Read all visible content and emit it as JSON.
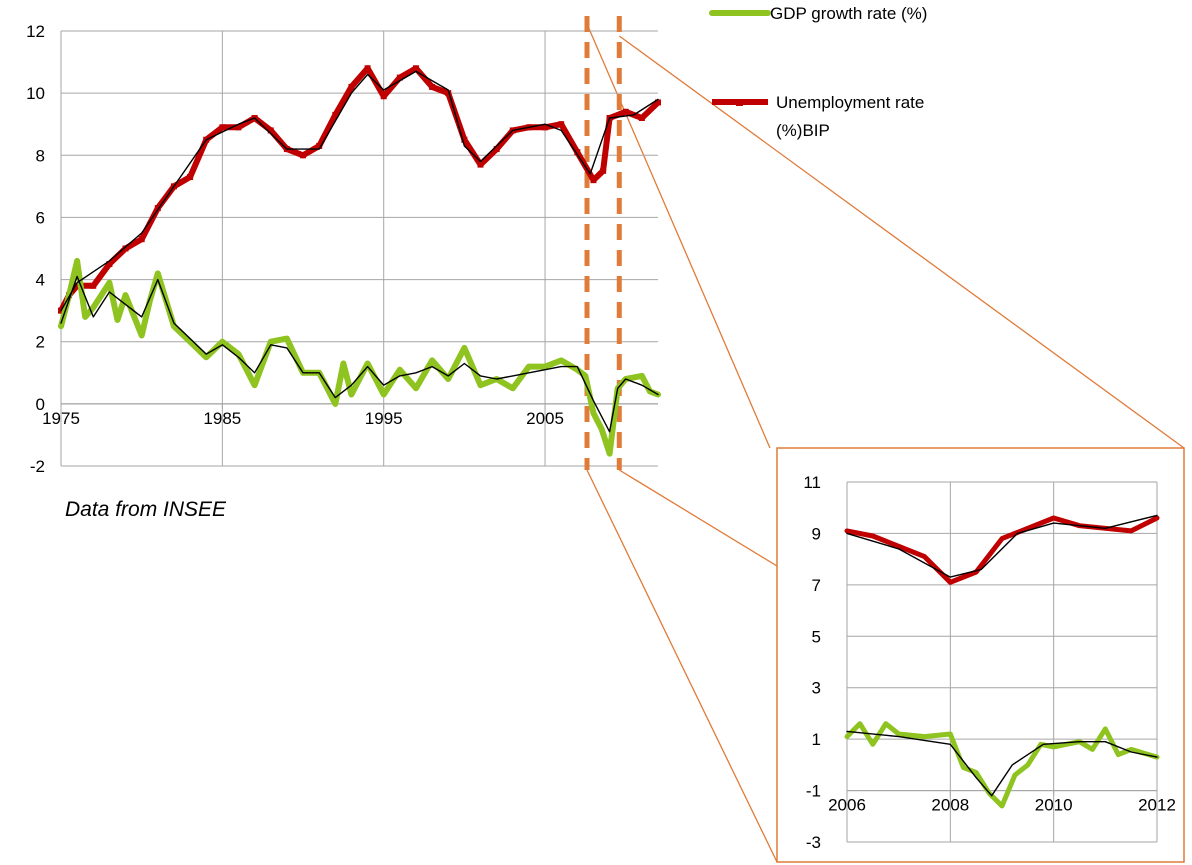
{
  "source_note": "Data from INSEE",
  "colors": {
    "gdp": "#8fc31f",
    "unemployment": "#c00000",
    "trend": "#000000",
    "grid": "#a6a6a6",
    "callout": "#e07b39",
    "callout_fill": "#fdf2e9"
  },
  "legend": [
    {
      "label": "GDP growth rate (%)",
      "color": "#8fc31f"
    },
    {
      "label": "Unemployment rate (%)BIP",
      "color": "#c00000"
    }
  ],
  "chart_data": [
    {
      "type": "line",
      "title": "",
      "xlabel": "",
      "ylabel": "",
      "xlim": [
        1975,
        2012
      ],
      "ylim": [
        -2,
        12
      ],
      "x_ticks": [
        "1975",
        "1985",
        "1995",
        "2005"
      ],
      "x_tick_values": [
        1975,
        1985,
        1995,
        2005
      ],
      "y_ticks": [
        "-2",
        "0",
        "2",
        "4",
        "6",
        "8",
        "10",
        "12"
      ],
      "y_tick_values": [
        -2,
        0,
        2,
        4,
        6,
        8,
        10,
        12
      ],
      "grid": "vertical and horizontal",
      "highlight_range": [
        2007.6,
        2009.6
      ],
      "series": [
        {
          "name": "Unemployment rate (%)BIP",
          "points": [
            [
              1975,
              3.0
            ],
            [
              1975.5,
              3.5
            ],
            [
              1976,
              3.8
            ],
            [
              1977,
              3.8
            ],
            [
              1978,
              4.5
            ],
            [
              1979,
              5.0
            ],
            [
              1980,
              5.3
            ],
            [
              1981,
              6.3
            ],
            [
              1982,
              7.0
            ],
            [
              1983,
              7.3
            ],
            [
              1984,
              8.5
            ],
            [
              1985,
              8.9
            ],
            [
              1986,
              8.9
            ],
            [
              1987,
              9.2
            ],
            [
              1988,
              8.8
            ],
            [
              1989,
              8.2
            ],
            [
              1990,
              8.0
            ],
            [
              1991,
              8.3
            ],
            [
              1992,
              9.3
            ],
            [
              1993,
              10.2
            ],
            [
              1994,
              10.8
            ],
            [
              1995,
              9.9
            ],
            [
              1996,
              10.5
            ],
            [
              1997,
              10.8
            ],
            [
              1998,
              10.2
            ],
            [
              1999,
              10.0
            ],
            [
              2000,
              8.5
            ],
            [
              2001,
              7.7
            ],
            [
              2002,
              8.2
            ],
            [
              2003,
              8.8
            ],
            [
              2004,
              8.9
            ],
            [
              2005,
              8.9
            ],
            [
              2006,
              9.0
            ],
            [
              2007,
              8.1
            ],
            [
              2008,
              7.2
            ],
            [
              2008.6,
              7.5
            ],
            [
              2009,
              9.2
            ],
            [
              2010,
              9.4
            ],
            [
              2011,
              9.2
            ],
            [
              2012,
              9.7
            ]
          ]
        },
        {
          "name": "GDP growth rate (%)",
          "points": [
            [
              1975,
              2.5
            ],
            [
              1975.5,
              3.5
            ],
            [
              1976,
              4.6
            ],
            [
              1976.5,
              2.8
            ],
            [
              1977,
              3.1
            ],
            [
              1978,
              3.9
            ],
            [
              1978.5,
              2.7
            ],
            [
              1979,
              3.5
            ],
            [
              1980,
              2.2
            ],
            [
              1980.5,
              3.3
            ],
            [
              1981,
              4.2
            ],
            [
              1982,
              2.5
            ],
            [
              1983,
              2.0
            ],
            [
              1984,
              1.5
            ],
            [
              1985,
              2.0
            ],
            [
              1986,
              1.6
            ],
            [
              1987,
              0.6
            ],
            [
              1988,
              2.0
            ],
            [
              1989,
              2.1
            ],
            [
              1990,
              1.0
            ],
            [
              1991,
              1.0
            ],
            [
              1992,
              0.0
            ],
            [
              1992.5,
              1.3
            ],
            [
              1993,
              0.3
            ],
            [
              1994,
              1.3
            ],
            [
              1995,
              0.3
            ],
            [
              1996,
              1.1
            ],
            [
              1997,
              0.5
            ],
            [
              1998,
              1.4
            ],
            [
              1999,
              0.8
            ],
            [
              2000,
              1.8
            ],
            [
              2001,
              0.6
            ],
            [
              2002,
              0.8
            ],
            [
              2003,
              0.5
            ],
            [
              2004,
              1.2
            ],
            [
              2005,
              1.2
            ],
            [
              2006,
              1.4
            ],
            [
              2007,
              1.1
            ],
            [
              2007.5,
              0.9
            ],
            [
              2008,
              -0.3
            ],
            [
              2008.5,
              -0.8
            ],
            [
              2009,
              -1.6
            ],
            [
              2009.5,
              0.5
            ],
            [
              2010,
              0.8
            ],
            [
              2011,
              0.9
            ],
            [
              2011.5,
              0.4
            ],
            [
              2012,
              0.3
            ]
          ]
        },
        {
          "name": "",
          "points": [
            [
              1975,
              3.0
            ],
            [
              1976,
              3.9
            ],
            [
              1978,
              4.6
            ],
            [
              1980,
              5.5
            ],
            [
              1982,
              7.0
            ],
            [
              1984,
              8.5
            ],
            [
              1986,
              9.0
            ],
            [
              1987,
              9.2
            ],
            [
              1989,
              8.2
            ],
            [
              1991,
              8.2
            ],
            [
              1993,
              10.0
            ],
            [
              1994,
              10.6
            ],
            [
              1995,
              10.1
            ],
            [
              1997,
              10.7
            ],
            [
              1999,
              10.1
            ],
            [
              2000,
              8.3
            ],
            [
              2001,
              7.8
            ],
            [
              2003,
              8.8
            ],
            [
              2005,
              9.0
            ],
            [
              2006,
              8.8
            ],
            [
              2007.8,
              7.4
            ],
            [
              2009,
              9.2
            ],
            [
              2010.5,
              9.3
            ],
            [
              2012,
              9.8
            ]
          ]
        },
        {
          "name": "",
          "points": [
            [
              1975,
              2.6
            ],
            [
              1976,
              4.1
            ],
            [
              1977,
              2.8
            ],
            [
              1978,
              3.6
            ],
            [
              1979,
              3.2
            ],
            [
              1980,
              2.8
            ],
            [
              1981,
              4.0
            ],
            [
              1982,
              2.6
            ],
            [
              1984,
              1.6
            ],
            [
              1985,
              1.9
            ],
            [
              1986,
              1.5
            ],
            [
              1987,
              1.0
            ],
            [
              1988,
              1.9
            ],
            [
              1989,
              1.8
            ],
            [
              1990,
              1.0
            ],
            [
              1991,
              1.0
            ],
            [
              1992,
              0.2
            ],
            [
              1993,
              0.6
            ],
            [
              1994,
              1.2
            ],
            [
              1995,
              0.6
            ],
            [
              1996,
              0.9
            ],
            [
              1997,
              1.0
            ],
            [
              1998,
              1.2
            ],
            [
              1999,
              0.9
            ],
            [
              2000,
              1.3
            ],
            [
              2001,
              0.9
            ],
            [
              2002,
              0.8
            ],
            [
              2003,
              0.9
            ],
            [
              2004,
              1.0
            ],
            [
              2005,
              1.1
            ],
            [
              2006,
              1.2
            ],
            [
              2007,
              1.2
            ],
            [
              2008,
              0.1
            ],
            [
              2009,
              -0.9
            ],
            [
              2009.5,
              0.5
            ],
            [
              2010,
              0.8
            ],
            [
              2011,
              0.6
            ],
            [
              2012,
              0.3
            ]
          ]
        }
      ]
    },
    {
      "type": "line",
      "title": "",
      "xlabel": "",
      "ylabel": "",
      "xlim": [
        2006,
        2012
      ],
      "ylim": [
        -3,
        11
      ],
      "x_ticks": [
        "2006",
        "2008",
        "2010",
        "2012"
      ],
      "x_tick_values": [
        2006,
        2008,
        2010,
        2012
      ],
      "y_ticks": [
        "-3",
        "-1",
        "1",
        "3",
        "5",
        "7",
        "9",
        "11"
      ],
      "y_tick_values": [
        -3,
        -1,
        1,
        3,
        5,
        7,
        9,
        11
      ],
      "grid": "vertical and horizontal",
      "series": [
        {
          "name": "Unemployment rate (%)BIP",
          "points": [
            [
              2006,
              9.1
            ],
            [
              2006.5,
              8.9
            ],
            [
              2007,
              8.5
            ],
            [
              2007.5,
              8.1
            ],
            [
              2008,
              7.1
            ],
            [
              2008.5,
              7.5
            ],
            [
              2009,
              8.8
            ],
            [
              2009.5,
              9.2
            ],
            [
              2010,
              9.6
            ],
            [
              2010.5,
              9.3
            ],
            [
              2011,
              9.2
            ],
            [
              2011.5,
              9.1
            ],
            [
              2012,
              9.6
            ]
          ]
        },
        {
          "name": "GDP growth rate (%)",
          "points": [
            [
              2006,
              1.1
            ],
            [
              2006.25,
              1.6
            ],
            [
              2006.5,
              0.8
            ],
            [
              2006.75,
              1.6
            ],
            [
              2007,
              1.2
            ],
            [
              2007.5,
              1.1
            ],
            [
              2008,
              1.2
            ],
            [
              2008.25,
              -0.1
            ],
            [
              2008.5,
              -0.3
            ],
            [
              2008.75,
              -1.1
            ],
            [
              2009,
              -1.6
            ],
            [
              2009.25,
              -0.4
            ],
            [
              2009.5,
              0.0
            ],
            [
              2009.75,
              0.8
            ],
            [
              2010,
              0.7
            ],
            [
              2010.5,
              0.9
            ],
            [
              2010.75,
              0.6
            ],
            [
              2011,
              1.4
            ],
            [
              2011.25,
              0.4
            ],
            [
              2011.5,
              0.6
            ],
            [
              2012,
              0.3
            ]
          ]
        },
        {
          "name": "",
          "points": [
            [
              2006,
              9.0
            ],
            [
              2007,
              8.4
            ],
            [
              2008,
              7.3
            ],
            [
              2008.6,
              7.6
            ],
            [
              2009.3,
              9.0
            ],
            [
              2010,
              9.4
            ],
            [
              2011,
              9.2
            ],
            [
              2012,
              9.7
            ]
          ]
        },
        {
          "name": "",
          "points": [
            [
              2006,
              1.3
            ],
            [
              2007,
              1.1
            ],
            [
              2008,
              0.8
            ],
            [
              2008.5,
              -0.5
            ],
            [
              2008.8,
              -1.2
            ],
            [
              2009.2,
              0.0
            ],
            [
              2009.8,
              0.8
            ],
            [
              2010.5,
              0.9
            ],
            [
              2011,
              0.9
            ],
            [
              2011.5,
              0.5
            ],
            [
              2012,
              0.3
            ]
          ]
        }
      ]
    }
  ]
}
